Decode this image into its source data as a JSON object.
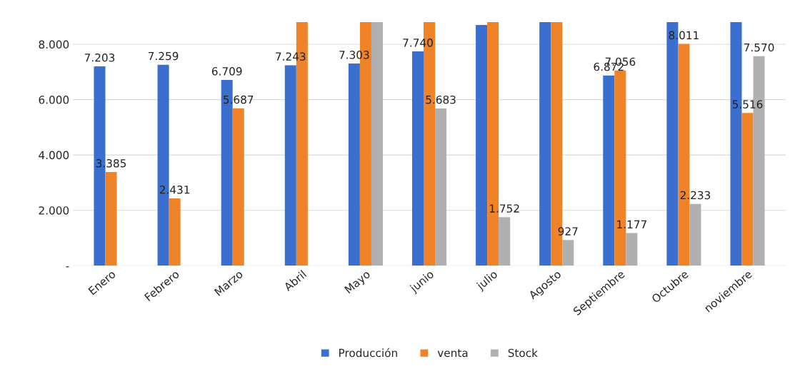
{
  "chart_data": {
    "type": "bar",
    "categories": [
      "Enero",
      "Febrero",
      "Marzo",
      "Abril",
      "Mayo",
      "junio",
      "julio",
      "Agosto",
      "Septiembre",
      "Octubre",
      "noviembre"
    ],
    "series": [
      {
        "name": "Producción",
        "color": "#3a6fd0",
        "values": [
          7203,
          7259,
          6709,
          7243,
          7303,
          7740,
          8700,
          8800,
          6872,
          8800,
          8800
        ],
        "value_labels": [
          "7.203",
          "7.259",
          "6.709",
          "7.243",
          "7.303",
          "7.740",
          null,
          null,
          "6.872",
          null,
          null
        ]
      },
      {
        "name": "venta",
        "color": "#f08228",
        "values": [
          3385,
          2431,
          5687,
          8800,
          8800,
          8800,
          8800,
          8800,
          7056,
          8011,
          5516
        ],
        "value_labels": [
          "3.385",
          "2.431",
          "5.687",
          null,
          null,
          null,
          null,
          null,
          "7.056",
          "8.011",
          "5.516"
        ]
      },
      {
        "name": "Stock",
        "color": "#b0b0b0",
        "values": [
          null,
          null,
          null,
          null,
          8800,
          5683,
          1752,
          927,
          1177,
          2233,
          7570
        ],
        "value_labels": [
          null,
          null,
          null,
          null,
          null,
          "5.683",
          "1.752",
          "927",
          "1.177",
          "2.233",
          "7.570"
        ]
      }
    ],
    "ylim": [
      0,
      8800
    ],
    "yticks": [
      {
        "value": 0,
        "label": "-"
      },
      {
        "value": 2000,
        "label": "2.000"
      },
      {
        "value": 4000,
        "label": "4.000"
      },
      {
        "value": 6000,
        "label": "6.000"
      },
      {
        "value": 8000,
        "label": "8.000"
      }
    ],
    "grid": "y",
    "legend": "bottom"
  }
}
